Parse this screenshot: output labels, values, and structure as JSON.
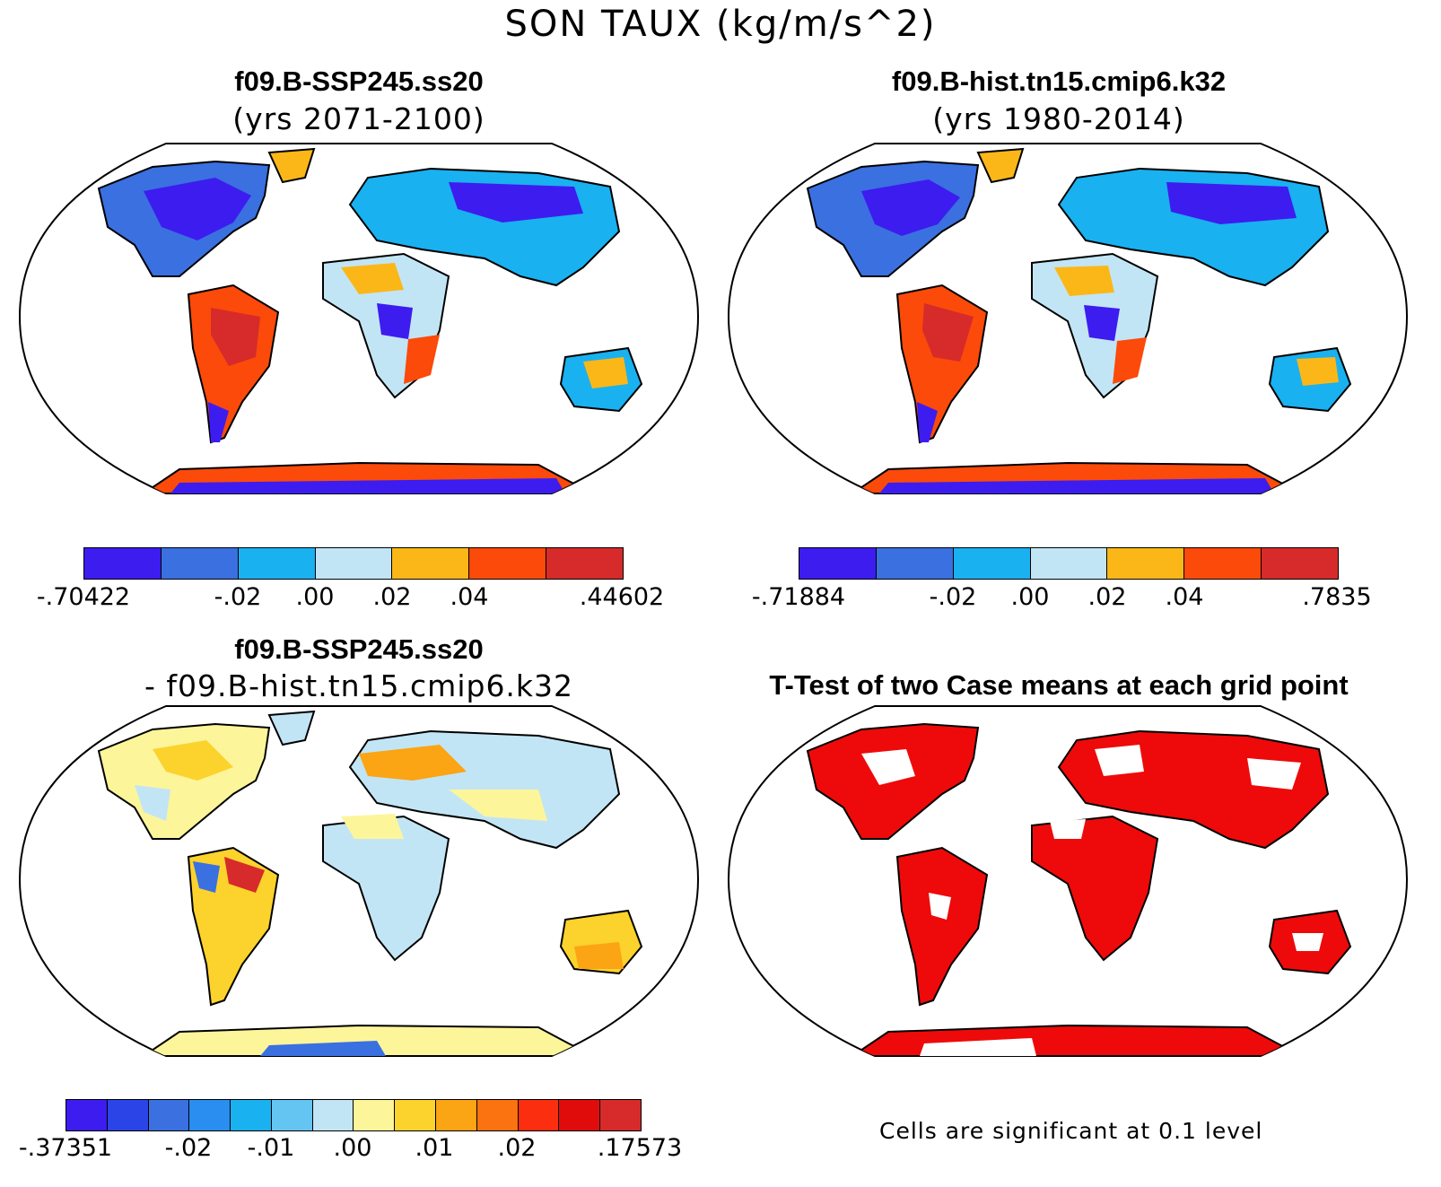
{
  "title": "SON TAUX (kg/m/s^2)",
  "panels": [
    {
      "id": "ssp245",
      "title_line1": "f09.B-SSP245.ss20",
      "title_line2": "(yrs 2071-2100)",
      "colors": [
        "#3d1cf0",
        "#3a70e0",
        "#19b1f0",
        "#c2e5f5",
        "#fbb718",
        "#fb4a0a",
        "#d62b2a"
      ],
      "colorbar_labels": [
        "-.70422",
        "-.02",
        ".00",
        ".02",
        ".04",
        ".44602"
      ]
    },
    {
      "id": "hist",
      "title_line1": "f09.B-hist.tn15.cmip6.k32",
      "title_line2": "(yrs 1980-2014)",
      "colors": [
        "#3d1cf0",
        "#3a70e0",
        "#19b1f0",
        "#c2e5f5",
        "#fbb718",
        "#fb4a0a",
        "#d62b2a"
      ],
      "colorbar_labels": [
        "-.71884",
        "-.02",
        ".00",
        ".02",
        ".04",
        ".7835"
      ]
    },
    {
      "id": "diff",
      "title_line1": "f09.B-SSP245.ss20",
      "title_line2": "- f09.B-hist.tn15.cmip6.k32",
      "colors": [
        "#3d1cf0",
        "#2a44e8",
        "#3a70e0",
        "#2a8ef0",
        "#19b1f0",
        "#64c4f2",
        "#c2e5f5",
        "#fdf59a",
        "#fcd22c",
        "#fba414",
        "#fb7210",
        "#fb2e10",
        "#e00c0c",
        "#d62b2a"
      ],
      "colorbar_labels": [
        "-.37351",
        "-.02",
        "-.01",
        ".00",
        ".01",
        ".02",
        ".17573"
      ]
    },
    {
      "id": "ttest",
      "title_line1": "T-Test of two Case means at each grid point",
      "footnote": "Cells are significant at 0.1 level",
      "colors": [
        "#ee0a0a"
      ]
    }
  ]
}
